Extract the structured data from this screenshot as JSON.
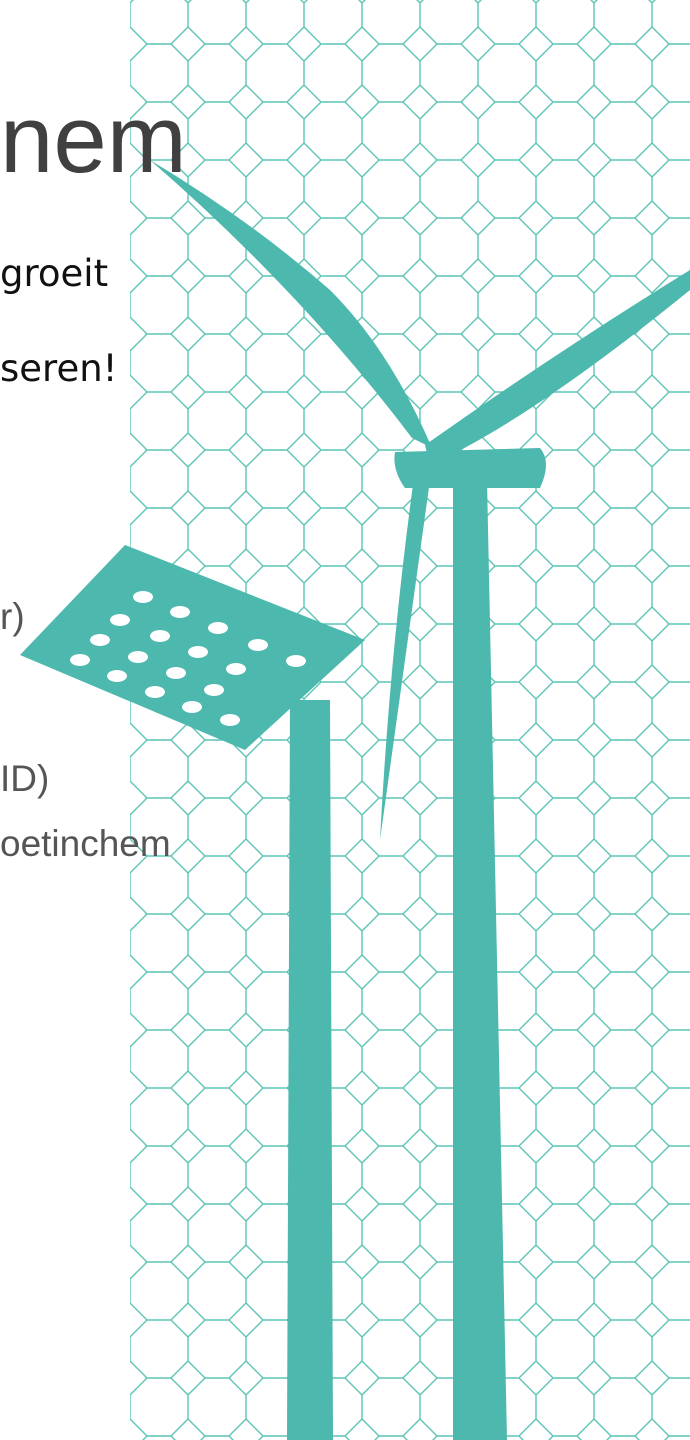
{
  "slide": {
    "title": "nem",
    "lines": [
      "groeit",
      "seren!"
    ],
    "items": [
      "r)",
      "ID)",
      "oetinchem"
    ]
  }
}
